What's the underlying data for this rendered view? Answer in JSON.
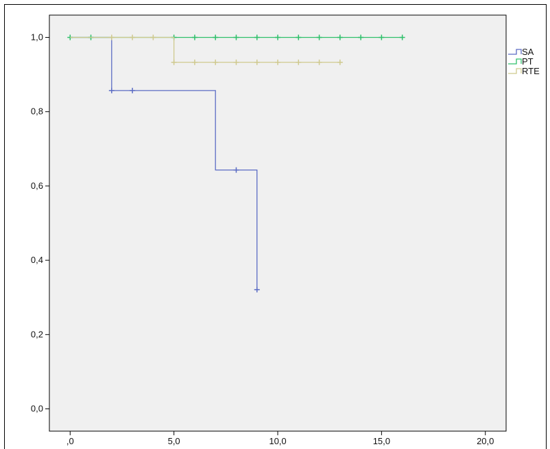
{
  "chart_data": {
    "type": "line",
    "step": true,
    "xlim": [
      -1,
      21
    ],
    "ylim": [
      -0.06,
      1.06
    ],
    "x_ticks": [
      0,
      5,
      10,
      15,
      20
    ],
    "x_tick_labels": [
      ",0",
      "5,0",
      "10,0",
      "15,0",
      "20,0"
    ],
    "y_ticks": [
      0,
      0.2,
      0.4,
      0.6,
      0.8,
      1.0
    ],
    "y_tick_labels": [
      "0,0",
      "0,2",
      "0,4",
      "0,6",
      "0,8",
      "1,0"
    ],
    "grid": false,
    "legend_position": "right",
    "plot_background": "#f0f0f0",
    "series": [
      {
        "name": "SA",
        "color": "#5a6bc4",
        "steps": [
          [
            0,
            1.0
          ],
          [
            2,
            0.857
          ],
          [
            7,
            0.643
          ],
          [
            9,
            0.321
          ]
        ],
        "end_x": 9,
        "censored": [
          [
            2,
            0.857
          ],
          [
            3,
            0.857
          ],
          [
            8,
            0.643
          ],
          [
            9,
            0.321
          ]
        ]
      },
      {
        "name": "PT",
        "color": "#2ec06a",
        "steps": [
          [
            0,
            1.0
          ]
        ],
        "end_x": 16,
        "censored": [
          [
            0,
            1.0
          ],
          [
            1,
            1.0
          ],
          [
            5,
            1.0
          ],
          [
            6,
            1.0
          ],
          [
            7,
            1.0
          ],
          [
            8,
            1.0
          ],
          [
            9,
            1.0
          ],
          [
            10,
            1.0
          ],
          [
            11,
            1.0
          ],
          [
            12,
            1.0
          ],
          [
            13,
            1.0
          ],
          [
            14,
            1.0
          ],
          [
            15,
            1.0
          ],
          [
            16,
            1.0
          ]
        ]
      },
      {
        "name": "RTE",
        "color": "#cfc98e",
        "steps": [
          [
            0,
            1.0
          ],
          [
            5,
            0.933
          ]
        ],
        "end_x": 13,
        "censored": [
          [
            2,
            1.0
          ],
          [
            3,
            1.0
          ],
          [
            4,
            1.0
          ],
          [
            5,
            0.933
          ],
          [
            6,
            0.933
          ],
          [
            7,
            0.933
          ],
          [
            8,
            0.933
          ],
          [
            9,
            0.933
          ],
          [
            10,
            0.933
          ],
          [
            11,
            0.933
          ],
          [
            12,
            0.933
          ],
          [
            13,
            0.933
          ]
        ]
      }
    ]
  }
}
